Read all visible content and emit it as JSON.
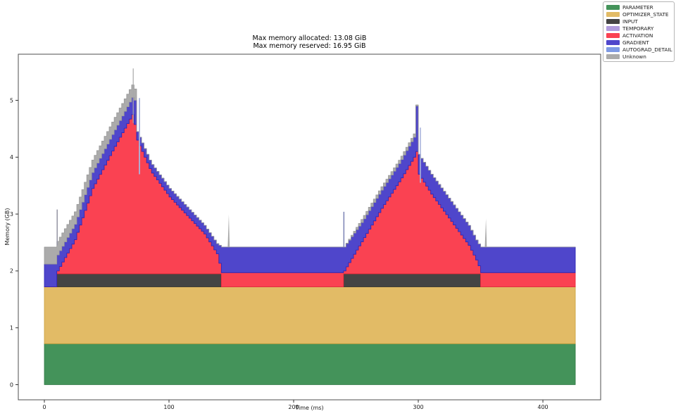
{
  "title": {
    "line1": "Max memory allocated: 13.08 GiB",
    "line2": "Max memory reserved: 16.95 GiB"
  },
  "axes": {
    "x_label": "Time (ms)",
    "y_label": "Memory (GB)",
    "x_ticks": [
      "0",
      "100",
      "200",
      "300",
      "400"
    ],
    "y_ticks": [
      "0",
      "1",
      "2",
      "3",
      "4",
      "5"
    ]
  },
  "legend": {
    "items": [
      {
        "label": "PARAMETER",
        "color": "#44935a"
      },
      {
        "label": "OPTIMIZER_STATE",
        "color": "#e2bb66"
      },
      {
        "label": "INPUT",
        "color": "#444444"
      },
      {
        "label": "TEMPORARY",
        "color": "#b19cdd"
      },
      {
        "label": "ACTIVATION",
        "color": "#fa4252"
      },
      {
        "label": "GRADIENT",
        "color": "#4f46cb"
      },
      {
        "label": "AUTOGRAD_DETAIL",
        "color": "#7e9ae4"
      },
      {
        "label": "Unknown",
        "color": "#ababab"
      }
    ]
  },
  "chart_data": {
    "type": "area",
    "stacked": true,
    "title": "Max memory allocated: 13.08 GiB\nMax memory reserved: 16.95 GiB",
    "xlabel": "Time (ms)",
    "ylabel": "Memory (GB)",
    "x_unit": "ms",
    "y_unit": "GB",
    "x_range": [
      0,
      427
    ],
    "xlim": [
      -21,
      446
    ],
    "ylim": [
      -0.27,
      5.81
    ],
    "grid": false,
    "legend_position": "outside-top-right",
    "annotations": {
      "max_allocated_gib": 13.08,
      "max_reserved_gib": 16.95
    },
    "series": [
      {
        "name": "PARAMETER",
        "color": "#44935a",
        "edge": "#337a47",
        "points": [
          [
            0,
            0.72
          ],
          [
            427,
            0.72
          ]
        ]
      },
      {
        "name": "OPTIMIZER_STATE",
        "color": "#e2bb66",
        "edge": "#caa23f",
        "points": [
          [
            0,
            1.72
          ],
          [
            427,
            1.72
          ]
        ]
      },
      {
        "name": "INPUT",
        "color": "#444444",
        "edge": "#2e2e2e",
        "points": [
          [
            0,
            1.72
          ],
          [
            9,
            1.72
          ],
          [
            10,
            1.95
          ],
          [
            141,
            1.95
          ],
          [
            142,
            1.72
          ],
          [
            239,
            1.72
          ],
          [
            240,
            1.95
          ],
          [
            349,
            1.95
          ],
          [
            350,
            1.72
          ],
          [
            427,
            1.72
          ]
        ]
      },
      {
        "name": "TEMPORARY",
        "color": "#b19cdd",
        "edge": "#9a82cc",
        "points": []
      },
      {
        "name": "ACTIVATION",
        "color": "#fa4252",
        "edge": "#ef2b3c",
        "points": [
          [
            0,
            1.72
          ],
          [
            9,
            1.72
          ],
          [
            10,
            2.0
          ],
          [
            24,
            2.55
          ],
          [
            38,
            3.45
          ],
          [
            55,
            4.15
          ],
          [
            70,
            4.75
          ],
          [
            71,
            4.8
          ],
          [
            73,
            4.35
          ],
          [
            85,
            3.75
          ],
          [
            100,
            3.3
          ],
          [
            115,
            2.95
          ],
          [
            128,
            2.65
          ],
          [
            138,
            2.3
          ],
          [
            142,
            1.97
          ],
          [
            239,
            1.97
          ],
          [
            240,
            2.0
          ],
          [
            255,
            2.55
          ],
          [
            270,
            3.1
          ],
          [
            285,
            3.6
          ],
          [
            296,
            4.0
          ],
          [
            298,
            4.1
          ],
          [
            300,
            3.7
          ],
          [
            310,
            3.35
          ],
          [
            320,
            3.05
          ],
          [
            330,
            2.75
          ],
          [
            340,
            2.45
          ],
          [
            347,
            2.15
          ],
          [
            350,
            1.97
          ],
          [
            427,
            1.97
          ]
        ]
      },
      {
        "name": "GRADIENT",
        "color": "#4f46cb",
        "edge": "#2b23b5",
        "points": [
          [
            0,
            2.12
          ],
          [
            9,
            2.12
          ],
          [
            10,
            2.28
          ],
          [
            24,
            2.82
          ],
          [
            38,
            3.73
          ],
          [
            55,
            4.44
          ],
          [
            70,
            5.05
          ],
          [
            71,
            5.32
          ],
          [
            72,
            5.0
          ],
          [
            73,
            4.5
          ],
          [
            85,
            3.9
          ],
          [
            100,
            3.45
          ],
          [
            115,
            3.1
          ],
          [
            128,
            2.8
          ],
          [
            138,
            2.48
          ],
          [
            142,
            2.42
          ],
          [
            239,
            2.42
          ],
          [
            240,
            2.42
          ],
          [
            255,
            2.88
          ],
          [
            270,
            3.42
          ],
          [
            285,
            3.92
          ],
          [
            296,
            4.35
          ],
          [
            297,
            4.55
          ],
          [
            298,
            4.9
          ],
          [
            299,
            4.3
          ],
          [
            300,
            4.05
          ],
          [
            310,
            3.7
          ],
          [
            320,
            3.4
          ],
          [
            330,
            3.1
          ],
          [
            340,
            2.8
          ],
          [
            347,
            2.5
          ],
          [
            350,
            2.42
          ],
          [
            427,
            2.42
          ]
        ]
      },
      {
        "name": "AUTOGRAD_DETAIL",
        "color": "#7e9ae4",
        "edge": "#5b7ed6",
        "points": []
      },
      {
        "name": "Unknown",
        "color": "#ababab",
        "edge": "#999999",
        "points": [
          [
            0,
            2.42
          ],
          [
            9,
            2.42
          ],
          [
            10,
            2.52
          ],
          [
            24,
            3.04
          ],
          [
            38,
            3.95
          ],
          [
            55,
            4.66
          ],
          [
            70,
            5.27
          ],
          [
            71,
            5.55
          ],
          [
            72,
            5.2
          ],
          [
            73,
            4.5
          ],
          [
            85,
            3.9
          ],
          [
            100,
            3.45
          ],
          [
            115,
            3.1
          ],
          [
            128,
            2.8
          ],
          [
            138,
            2.48
          ],
          [
            142,
            2.42
          ],
          [
            239,
            2.42
          ],
          [
            240,
            2.42
          ],
          [
            255,
            2.94
          ],
          [
            270,
            3.48
          ],
          [
            285,
            3.98
          ],
          [
            296,
            4.41
          ],
          [
            297,
            4.6
          ],
          [
            298,
            4.92
          ],
          [
            299,
            4.3
          ],
          [
            300,
            4.05
          ],
          [
            310,
            3.7
          ],
          [
            320,
            3.4
          ],
          [
            330,
            3.1
          ],
          [
            340,
            2.8
          ],
          [
            347,
            2.5
          ],
          [
            350,
            2.42
          ],
          [
            427,
            2.42
          ]
        ]
      }
    ],
    "spikes": [
      {
        "t": 10.3,
        "y0": 2.45,
        "y1": 3.08,
        "color": "#9a9aa8",
        "w": 1.6,
        "shape": "line"
      },
      {
        "t": 71.3,
        "y0": 4.6,
        "y1": 5.56,
        "color": "#a8a8a8",
        "w": 1.2,
        "shape": "line"
      },
      {
        "t": 76.3,
        "y0": 3.7,
        "y1": 5.04,
        "color": "#a9b4dc",
        "w": 1.8,
        "shape": "line"
      },
      {
        "t": 148,
        "y0": 2.42,
        "y1": 2.99,
        "color": "#a8a8a8",
        "w": 2.2,
        "shape": "taper"
      },
      {
        "t": 240.3,
        "y0": 2.42,
        "y1": 3.04,
        "color": "#8289b8",
        "w": 1.6,
        "shape": "line"
      },
      {
        "t": 301.7,
        "y0": 3.55,
        "y1": 4.52,
        "color": "#a9b4dc",
        "w": 1.6,
        "shape": "line"
      },
      {
        "t": 354.3,
        "y0": 2.42,
        "y1": 2.92,
        "color": "#a8a8a8",
        "w": 2.2,
        "shape": "taper"
      }
    ]
  }
}
